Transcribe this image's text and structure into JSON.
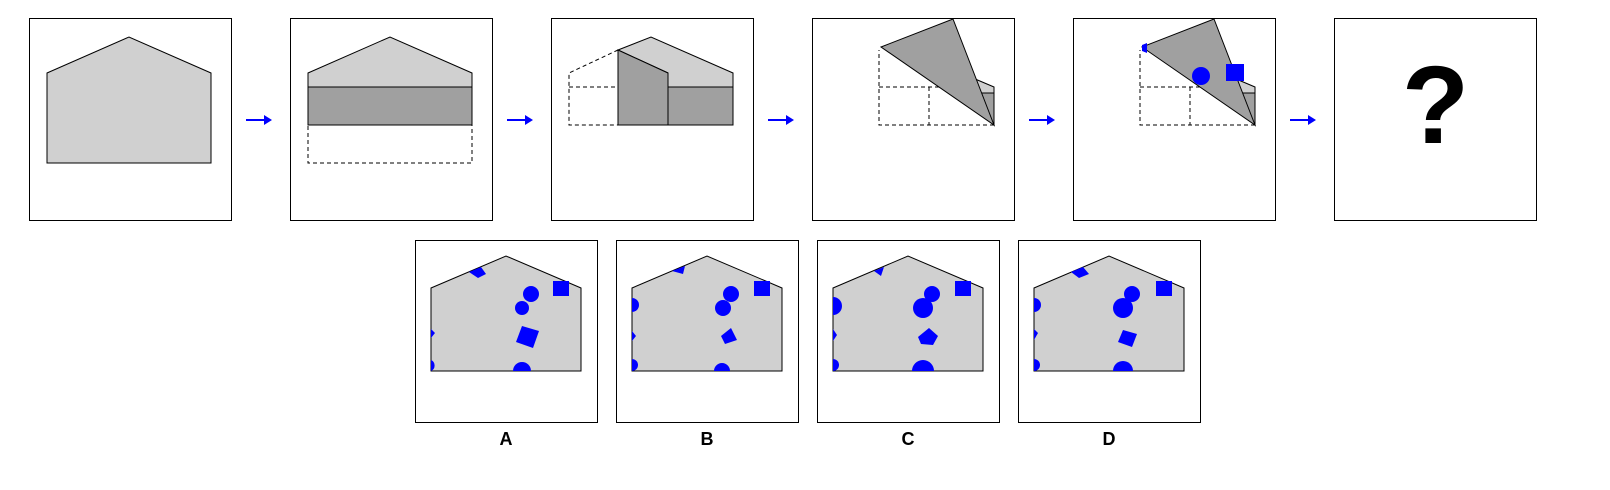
{
  "question": {
    "mark": "?"
  },
  "colors": {
    "light_fill": "#d0d0d0",
    "dark_fill": "#a0a0a0",
    "hole": "#0000ff",
    "arrow": "#0000ff",
    "outline": "#000000"
  },
  "options": [
    {
      "label": "A"
    },
    {
      "label": "B"
    },
    {
      "label": "C"
    },
    {
      "label": "D"
    }
  ]
}
